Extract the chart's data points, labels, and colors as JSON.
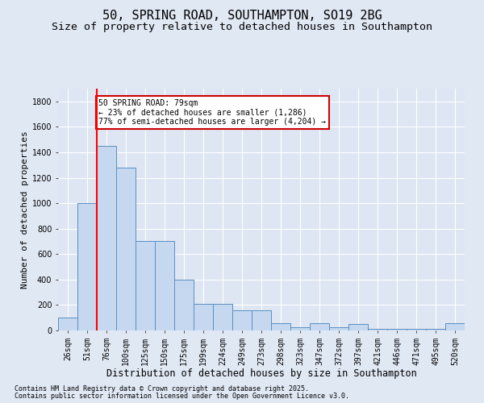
{
  "title1": "50, SPRING ROAD, SOUTHAMPTON, SO19 2BG",
  "title2": "Size of property relative to detached houses in Southampton",
  "xlabel": "Distribution of detached houses by size in Southampton",
  "ylabel": "Number of detached properties",
  "categories": [
    "26sqm",
    "51sqm",
    "76sqm",
    "100sqm",
    "125sqm",
    "150sqm",
    "175sqm",
    "199sqm",
    "224sqm",
    "249sqm",
    "273sqm",
    "298sqm",
    "323sqm",
    "347sqm",
    "372sqm",
    "397sqm",
    "421sqm",
    "446sqm",
    "471sqm",
    "495sqm",
    "520sqm"
  ],
  "values": [
    100,
    1000,
    1450,
    1280,
    700,
    700,
    400,
    210,
    210,
    160,
    160,
    55,
    25,
    55,
    25,
    50,
    10,
    10,
    10,
    10,
    55
  ],
  "bar_color": "#c5d8f0",
  "bar_edge_color": "#5a8fc2",
  "red_line_index": 2,
  "annotation_text": "50 SPRING ROAD: 79sqm\n← 23% of detached houses are smaller (1,286)\n77% of semi-detached houses are larger (4,204) →",
  "annotation_box_color": "#ffffff",
  "annotation_box_edge": "#cc0000",
  "footer1": "Contains HM Land Registry data © Crown copyright and database right 2025.",
  "footer2": "Contains public sector information licensed under the Open Government Licence v3.0.",
  "ylim": [
    0,
    1900
  ],
  "yticks": [
    0,
    200,
    400,
    600,
    800,
    1000,
    1200,
    1400,
    1600,
    1800
  ],
  "bg_color": "#e0e8f4",
  "plot_bg": "#dde6f2",
  "grid_color": "#ffffff",
  "title1_fontsize": 11,
  "title2_fontsize": 9.5,
  "ylabel_fontsize": 8,
  "xlabel_fontsize": 8.5,
  "tick_fontsize": 7,
  "annot_fontsize": 7,
  "footer_fontsize": 6
}
